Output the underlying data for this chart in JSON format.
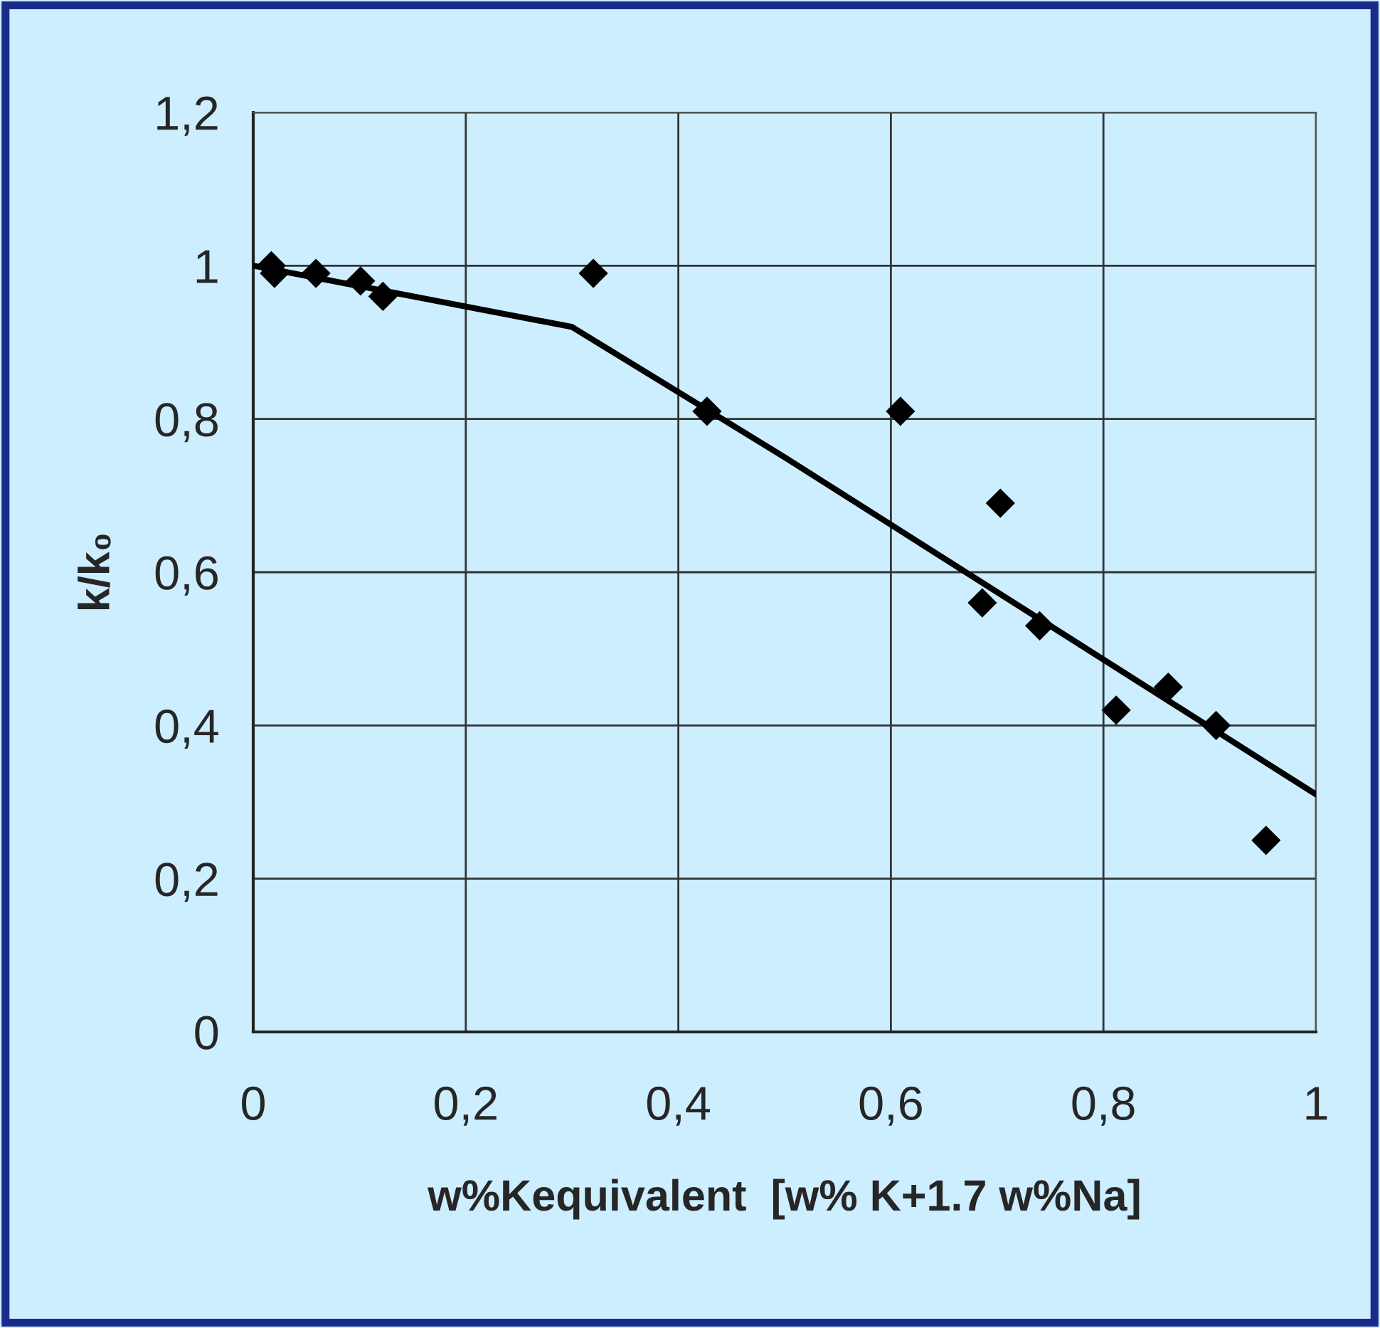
{
  "chart_data": {
    "type": "scatter",
    "xlabel": "w%Kequivalent  [w% K+1.7 w%Na]",
    "ylabel": "k/k₀",
    "series": [
      {
        "color": "#000000",
        "marker": "diamond",
        "x": [
          0.017,
          0.02,
          0.059,
          0.101,
          0.122,
          0.32,
          0.427,
          0.609,
          0.686,
          0.703,
          0.74,
          0.812,
          0.861,
          0.906,
          0.953
        ],
        "values": [
          1.0,
          0.99,
          0.99,
          0.98,
          0.96,
          0.99,
          0.81,
          0.81,
          0.56,
          0.69,
          0.53,
          0.42,
          0.45,
          0.4,
          0.25
        ]
      },
      {
        "type": "line",
        "color": "#000000",
        "marker": "none",
        "line_style": "solid",
        "x": [
          0,
          0.3,
          0.5,
          1
        ],
        "values": [
          1.0,
          0.92,
          0.75,
          0.31
        ]
      }
    ],
    "xlim": [
      0,
      1
    ],
    "xticks": [
      {
        "value": 0,
        "label": "0"
      },
      {
        "value": 0.2,
        "label": "0,2"
      },
      {
        "value": 0.4,
        "label": "0,4"
      },
      {
        "value": 0.6,
        "label": "0,6"
      },
      {
        "value": 0.8,
        "label": "0,8"
      },
      {
        "value": 1,
        "label": "1"
      }
    ],
    "ylim": [
      0,
      1.2
    ],
    "yticks": [
      {
        "value": 0,
        "label": "0"
      },
      {
        "value": 0.2,
        "label": "0,2"
      },
      {
        "value": 0.4,
        "label": "0,4"
      },
      {
        "value": 0.6,
        "label": "0,6"
      },
      {
        "value": 0.8,
        "label": "0,8"
      },
      {
        "value": 1,
        "label": "1"
      },
      {
        "value": 1.2,
        "label": "1,2"
      }
    ],
    "grid": true,
    "legend": false
  }
}
